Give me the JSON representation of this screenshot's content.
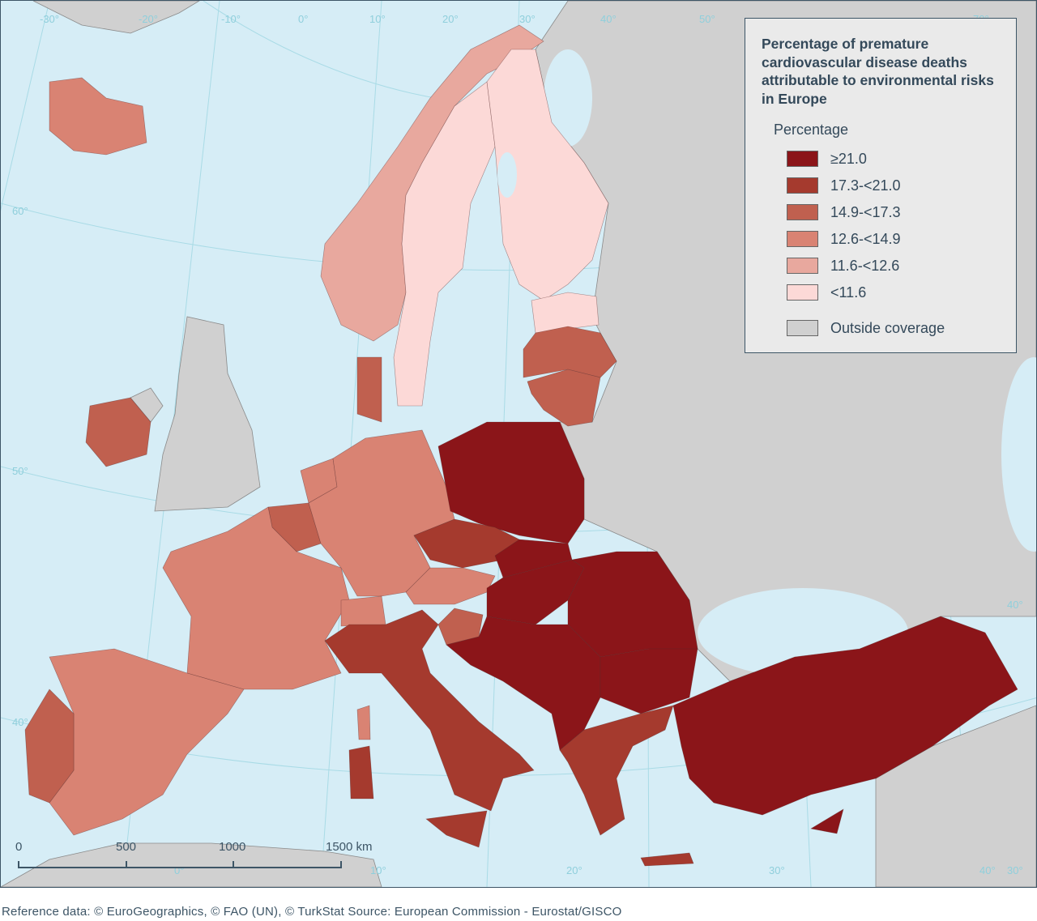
{
  "legend": {
    "title": "Percentage of premature cardiovascular disease deaths attributable to environmental risks in Europe",
    "subtitle": "Percentage",
    "classes": [
      {
        "label": "≥21.0",
        "color": "#8b1519"
      },
      {
        "label": "17.3-<21.0",
        "color": "#a53a2e"
      },
      {
        "label": "14.9-<17.3",
        "color": "#c0604f"
      },
      {
        "label": "12.6-<14.9",
        "color": "#d98373"
      },
      {
        "label": "11.6-<12.6",
        "color": "#e8a89e"
      },
      {
        "label": "<11.6",
        "color": "#fcd9d7"
      }
    ],
    "outside": {
      "label": "Outside coverage",
      "color": "#d0d0d0"
    }
  },
  "colors": {
    "sea": "#d6edf6",
    "graticule": "#a9dbe6",
    "border": "#3d5566"
  },
  "graticule_labels": {
    "top": [
      "-30°",
      "-20°",
      "-10°",
      "0°",
      "10°",
      "20°",
      "30°",
      "40°",
      "50°",
      "70°"
    ],
    "left": [
      "60°",
      "50°",
      "40°"
    ],
    "right": [
      "40°",
      "30°"
    ],
    "bottom": [
      "0°",
      "10°",
      "20°",
      "30°",
      "40°"
    ]
  },
  "regions": [
    {
      "id": "iceland",
      "class": 3
    },
    {
      "id": "norway",
      "class": 4
    },
    {
      "id": "sweden",
      "class": 5
    },
    {
      "id": "finland",
      "class": 5
    },
    {
      "id": "estonia",
      "class": 5
    },
    {
      "id": "latvia",
      "class": 2
    },
    {
      "id": "lithuania",
      "class": 2
    },
    {
      "id": "denmark",
      "class": 2
    },
    {
      "id": "ireland",
      "class": 2
    },
    {
      "id": "netherlands",
      "class": 3
    },
    {
      "id": "belgium",
      "class": 2
    },
    {
      "id": "france",
      "class": 3
    },
    {
      "id": "germany",
      "class": 3
    },
    {
      "id": "poland",
      "class": 0
    },
    {
      "id": "czechia",
      "class": 1
    },
    {
      "id": "austria",
      "class": 3
    },
    {
      "id": "switzerland",
      "class": 3
    },
    {
      "id": "slovakia",
      "class": 0
    },
    {
      "id": "hungary",
      "class": 0
    },
    {
      "id": "romania",
      "class": 0
    },
    {
      "id": "slovenia",
      "class": 2
    },
    {
      "id": "western-balkans",
      "class": 0
    },
    {
      "id": "bulgaria",
      "class": 0
    },
    {
      "id": "greece",
      "class": 1
    },
    {
      "id": "crete",
      "class": 1
    },
    {
      "id": "turkey",
      "class": 0
    },
    {
      "id": "italy",
      "class": 1
    },
    {
      "id": "sicily",
      "class": 1
    },
    {
      "id": "sardinia",
      "class": 1
    },
    {
      "id": "corsica",
      "class": 3
    },
    {
      "id": "spain",
      "class": 3
    },
    {
      "id": "portugal",
      "class": 2
    },
    {
      "id": "cyprus",
      "class": 0
    }
  ],
  "scale_bar": {
    "labels": [
      "0",
      "500",
      "1000",
      "1500 km"
    ]
  },
  "footer": "Reference data: © EuroGeographics, © FAO (UN), © TurkStat Source: European Commission - Eurostat/GISCO"
}
